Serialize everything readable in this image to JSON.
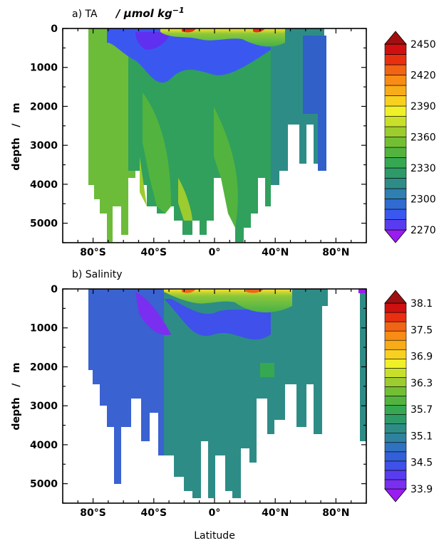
{
  "chart_data": [
    {
      "type": "heatmap",
      "title": "a) TA",
      "unit": "μmol kg",
      "unit_exp": "−1",
      "ylabel": "depth   /   m",
      "xlim": [
        -100,
        100
      ],
      "ylim": [
        5500,
        0
      ],
      "xticks": [
        -80,
        -40,
        0,
        40,
        80
      ],
      "xtick_labels": [
        "80°S",
        "40°S",
        "0°",
        "40°N",
        "80°N"
      ],
      "yticks": [
        0,
        1000,
        2000,
        3000,
        4000,
        5000
      ],
      "ytick_labels": [
        "0",
        "1000",
        "2000",
        "3000",
        "4000",
        "5000"
      ],
      "colorbar_levels": [
        2270,
        2280,
        2290,
        2300,
        2310,
        2320,
        2330,
        2340,
        2350,
        2360,
        2370,
        2380,
        2390,
        2400,
        2410,
        2420,
        2430,
        2440,
        2450
      ],
      "colorbar_labels": [
        "2270",
        "2300",
        "2330",
        "2360",
        "2390",
        "2420",
        "2450"
      ],
      "colors": [
        "#9a1cf0",
        "#5a3cf0",
        "#3a58f0",
        "#2f6bd0",
        "#2f7fb0",
        "#2e8c86",
        "#2e9a68",
        "#36a852",
        "#52b43e",
        "#72bf34",
        "#9ccc2e",
        "#c8e02a",
        "#f0f028",
        "#f8d020",
        "#f8ac18",
        "#f88c14",
        "#f06414",
        "#e83010",
        "#d01010",
        "#a01010"
      ]
    },
    {
      "type": "heatmap",
      "title": "b) Salinity",
      "xlabel": "Latitude",
      "ylabel": "depth   /   m",
      "xlim": [
        -100,
        100
      ],
      "ylim": [
        5500,
        0
      ],
      "xticks": [
        -80,
        -40,
        0,
        40,
        80
      ],
      "xtick_labels": [
        "80°S",
        "40°S",
        "0°",
        "40°N",
        "80°N"
      ],
      "yticks": [
        0,
        1000,
        2000,
        3000,
        4000,
        5000
      ],
      "ytick_labels": [
        "0",
        "1000",
        "2000",
        "3000",
        "4000",
        "5000"
      ],
      "colorbar_levels": [
        33.9,
        34.1,
        34.3,
        34.5,
        34.7,
        34.9,
        35.1,
        35.3,
        35.5,
        35.7,
        35.9,
        36.1,
        36.3,
        36.5,
        36.7,
        36.9,
        37.1,
        37.3,
        37.5,
        37.7,
        37.9,
        38.1
      ],
      "colorbar_labels": [
        "33.9",
        "34.5",
        "35.1",
        "35.7",
        "36.3",
        "36.9",
        "37.5",
        "38.1"
      ],
      "colors": [
        "#9a1cf0",
        "#7a2ef0",
        "#5a3cf0",
        "#4050ea",
        "#3260d8",
        "#2f72c0",
        "#2e82a0",
        "#2e8c86",
        "#2e9a68",
        "#36a852",
        "#52b43e",
        "#72bf34",
        "#9ccc2e",
        "#c8e02a",
        "#f0f028",
        "#f8d020",
        "#f8ac18",
        "#f88c14",
        "#f06414",
        "#e83010",
        "#d01010",
        "#a01010"
      ]
    }
  ]
}
